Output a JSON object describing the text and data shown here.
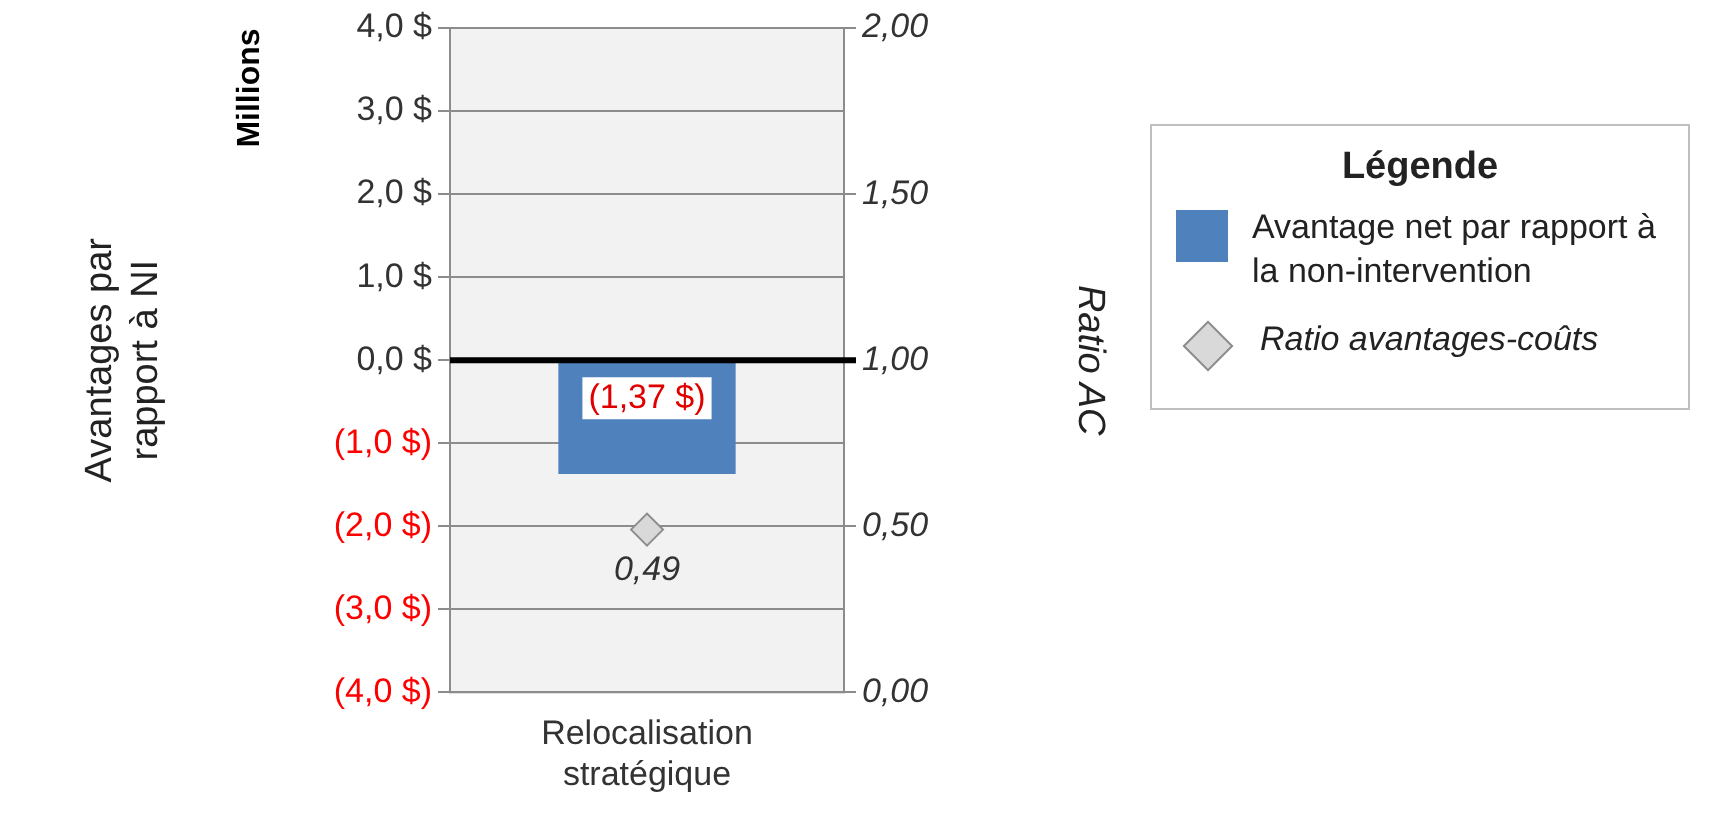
{
  "chart_data": {
    "type": "bar",
    "categories": [
      "Relocalisation stratégique"
    ],
    "ylabel": "Avantages par rapport à NI",
    "y2label": "Ratio AC",
    "legend_title": "Légende",
    "annotations": [
      "Millions"
    ],
    "series": [
      {
        "name": "Avantage net par rapport à la non-intervention",
        "color": "#4f81bd",
        "values": [
          -1.37
        ],
        "value_labels": [
          "(1,37 $)"
        ]
      },
      {
        "name": "Ratio avantages-coûts",
        "type": "scatter",
        "axis": "y2",
        "marker": "diamond",
        "color": "#d9d9d9",
        "x": [
          "Relocalisation stratégique"
        ],
        "values": [
          0.49
        ],
        "value_labels": [
          "0,49"
        ]
      }
    ],
    "ylim": [
      -4,
      4
    ],
    "yticks": [
      {
        "value": -4,
        "label": "(4,0 $)"
      },
      {
        "value": -3,
        "label": "(3,0 $)"
      },
      {
        "value": -2,
        "label": "(2,0 $)"
      },
      {
        "value": -1,
        "label": "(1,0 $)"
      },
      {
        "value": 0,
        "label": "0,0 $"
      },
      {
        "value": 1,
        "label": "1,0 $"
      },
      {
        "value": 2,
        "label": "2,0 $"
      },
      {
        "value": 3,
        "label": "3,0 $"
      },
      {
        "value": 4,
        "label": "4,0 $"
      }
    ],
    "y2lim": [
      0,
      2
    ],
    "y2ticks": [
      {
        "value": 0,
        "label": "0,00"
      },
      {
        "value": 0.5,
        "label": "0,50"
      },
      {
        "value": 1,
        "label": "1,00"
      },
      {
        "value": 1.5,
        "label": "1,50"
      },
      {
        "value": 2,
        "label": "2,00"
      }
    ],
    "ref_lines": [
      {
        "axis": "y",
        "value": 0,
        "color": "#000000"
      }
    ],
    "grid": "y",
    "legend": "right"
  }
}
